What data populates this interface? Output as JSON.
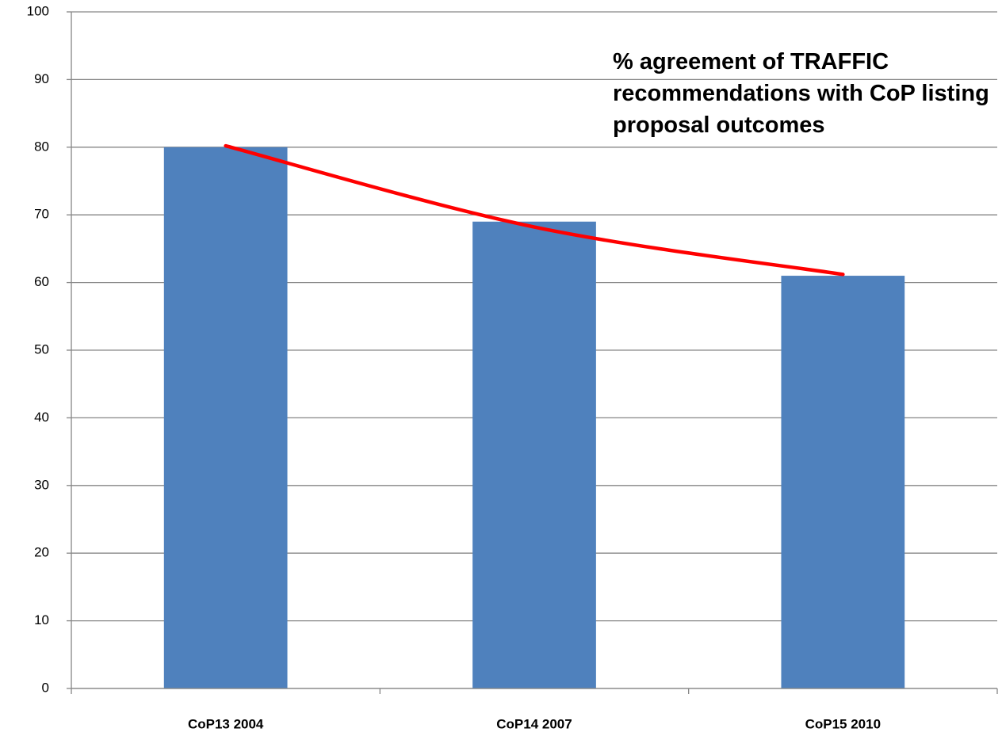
{
  "chart_data": {
    "type": "bar",
    "title": "% agreement of TRAFFIC recommendations with CoP listing proposal outcomes",
    "categories": [
      "CoP13 2004",
      "CoP14 2007",
      "CoP15 2010"
    ],
    "values": [
      80,
      69,
      61
    ],
    "color": "#4f81bd",
    "trendline": {
      "color": "#ff0000",
      "values": [
        80.2,
        68.2,
        61.2
      ]
    },
    "ylim": [
      0,
      100
    ],
    "yticks": [
      0,
      10,
      20,
      30,
      40,
      50,
      60,
      70,
      80,
      90,
      100
    ],
    "grid": true
  }
}
